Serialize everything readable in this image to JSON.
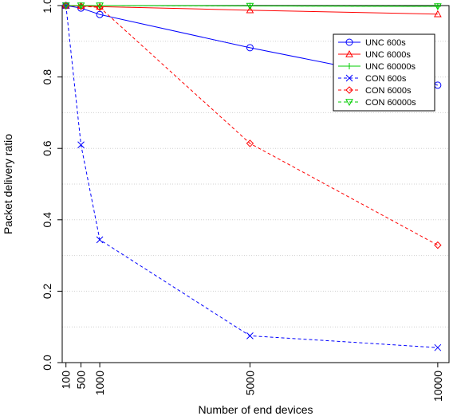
{
  "chart_data": {
    "type": "line",
    "title": "",
    "xlabel": "Number of end devices",
    "ylabel": "Packet delivery ratio",
    "x": [
      100,
      500,
      1000,
      5000,
      10000
    ],
    "x_tick_labels": [
      "100",
      "500",
      "1000",
      "5000",
      "10000"
    ],
    "xlim": [
      0,
      10300
    ],
    "ylim": [
      0,
      1
    ],
    "y_ticks": [
      0.0,
      0.2,
      0.4,
      0.6,
      0.8,
      1.0
    ],
    "y_tick_labels": [
      "0.0",
      "0.2",
      "0.4",
      "0.6",
      "0.8",
      "1.0"
    ],
    "grid": "horizontal dotted",
    "legend_position": "top-right",
    "series": [
      {
        "name": "UNC 600s",
        "values": [
          1.0,
          0.993,
          0.975,
          0.882,
          0.777
        ],
        "color": "#0000ff",
        "dash": "solid",
        "marker": "circle"
      },
      {
        "name": "UNC 6000s",
        "values": [
          1.0,
          0.999,
          0.997,
          0.987,
          0.976
        ],
        "color": "#ff0000",
        "dash": "solid",
        "marker": "triangle-up"
      },
      {
        "name": "UNC 60000s",
        "values": [
          1.0,
          1.0,
          1.0,
          0.999,
          0.998
        ],
        "color": "#00cc00",
        "dash": "solid",
        "marker": "plus"
      },
      {
        "name": "CON 600s",
        "values": [
          1.0,
          0.61,
          0.344,
          0.075,
          0.042
        ],
        "color": "#0000ff",
        "dash": "dashed",
        "marker": "cross"
      },
      {
        "name": "CON 6000s",
        "values": [
          1.0,
          0.998,
          0.995,
          0.614,
          0.329
        ],
        "color": "#ff0000",
        "dash": "dashed",
        "marker": "diamond"
      },
      {
        "name": "CON 60000s",
        "values": [
          1.0,
          1.0,
          1.0,
          0.999,
          0.998
        ],
        "color": "#00cc00",
        "dash": "dashed",
        "marker": "triangle-down"
      }
    ]
  }
}
